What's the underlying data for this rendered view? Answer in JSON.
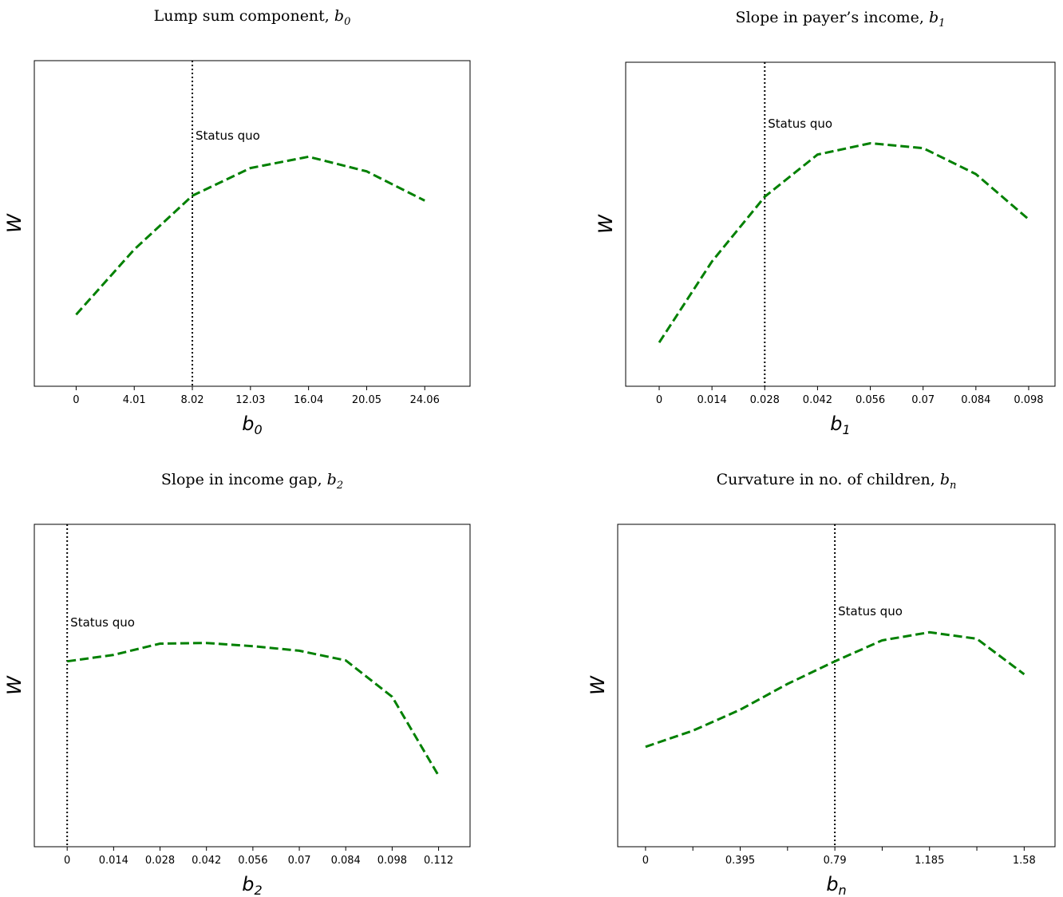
{
  "chart_data": [
    {
      "type": "line",
      "title": "Lump sum component, ",
      "title_var": "b",
      "title_sub": "0",
      "xlabel": "b",
      "xlabel_sub": "0",
      "ylabel": "W",
      "x": [
        0,
        4.01,
        8.02,
        12.03,
        16.04,
        20.05,
        24.06
      ],
      "xticks": [
        "0",
        "4.01",
        "8.02",
        "12.03",
        "16.04",
        "20.05",
        "24.06"
      ],
      "minor_xticks": [],
      "xlim": [
        -2.887,
        27.186
      ],
      "ylim": [
        0,
        1
      ],
      "series": [
        {
          "color": "#008000",
          "style": "dashed",
          "values": [
            0.22,
            0.42,
            0.585,
            0.67,
            0.705,
            0.66,
            0.57
          ]
        }
      ],
      "status_quo": {
        "x": 8.02,
        "label": "Status quo",
        "label_y": 0.77
      }
    },
    {
      "type": "line",
      "title": "Slope in payer’s income, ",
      "title_var": "b",
      "title_sub": "1",
      "xlabel": "b",
      "xlabel_sub": "1",
      "ylabel": "W",
      "x": [
        0,
        0.014,
        0.028,
        0.042,
        0.056,
        0.07,
        0.084,
        0.098
      ],
      "xticks": [
        "0",
        "0.014",
        "0.028",
        "0.042",
        "0.056",
        "0.07",
        "0.084",
        "0.098"
      ],
      "minor_xticks": [],
      "xlim": [
        -0.00889,
        0.10499
      ],
      "ylim": [
        0,
        1
      ],
      "series": [
        {
          "color": "#008000",
          "style": "dashed",
          "values": [
            0.135,
            0.385,
            0.585,
            0.715,
            0.75,
            0.735,
            0.655,
            0.515
          ]
        }
      ],
      "status_quo": {
        "x": 0.028,
        "label": "Status quo",
        "label_y": 0.81
      }
    },
    {
      "type": "line",
      "title": "Slope in income gap, ",
      "title_var": "b",
      "title_sub": "2",
      "xlabel": "b",
      "xlabel_sub": "2",
      "ylabel": "W",
      "x": [
        0,
        0.014,
        0.028,
        0.042,
        0.056,
        0.07,
        0.084,
        0.098,
        0.112
      ],
      "xticks": [
        "0",
        "0.014",
        "0.028",
        "0.042",
        "0.056",
        "0.07",
        "0.084",
        "0.098",
        "0.112"
      ],
      "minor_xticks": [],
      "xlim": [
        -0.00991,
        0.12149
      ],
      "ylim": [
        0,
        1
      ],
      "series": [
        {
          "color": "#008000",
          "style": "dashed",
          "values": [
            0.575,
            0.595,
            0.63,
            0.632,
            0.622,
            0.608,
            0.578,
            0.465,
            0.22
          ]
        }
      ],
      "status_quo": {
        "x": 0,
        "label": "Status quo",
        "label_y": 0.695
      }
    },
    {
      "type": "line",
      "title": "Curvature in no. of children, ",
      "title_var": "b",
      "title_sub": "n",
      "xlabel": "b",
      "xlabel_sub": "n",
      "ylabel": "W",
      "x": [
        0,
        0.1975,
        0.395,
        0.5925,
        0.79,
        0.9875,
        1.185,
        1.3825,
        1.58
      ],
      "xticks": [
        "0",
        "0.395",
        "0.79",
        "1.185",
        "1.58"
      ],
      "minor_xticks": [
        0.1975,
        0.5925,
        0.9875,
        1.3825
      ],
      "xlim": [
        -0.1162,
        1.7087
      ],
      "ylim": [
        0,
        1
      ],
      "series": [
        {
          "color": "#008000",
          "style": "dashed",
          "values": [
            0.31,
            0.36,
            0.425,
            0.505,
            0.575,
            0.64,
            0.665,
            0.645,
            0.535
          ]
        }
      ],
      "status_quo": {
        "x": 0.79,
        "label": "Status quo",
        "label_y": 0.73
      }
    }
  ]
}
